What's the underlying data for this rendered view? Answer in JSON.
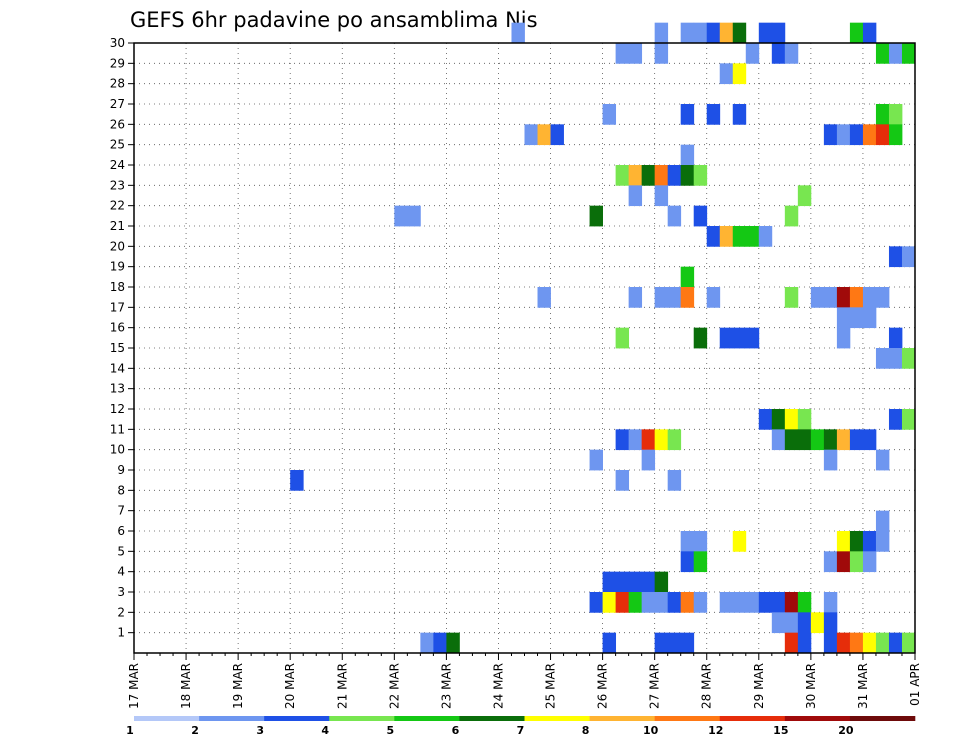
{
  "chart_data": {
    "type": "heatmap",
    "title": "GEFS 6hr padavine po ansamblima Nis",
    "y_ticks": [
      "1",
      "2",
      "3",
      "4",
      "5",
      "6",
      "7",
      "8",
      "9",
      "10",
      "11",
      "12",
      "13",
      "14",
      "15",
      "16",
      "17",
      "18",
      "19",
      "20",
      "21",
      "22",
      "23",
      "24",
      "25",
      "26",
      "27",
      "28",
      "29",
      "30"
    ],
    "y_range": [
      0,
      30
    ],
    "x_ticks": [
      "17 MAR",
      "18 MAR",
      "19 MAR",
      "20 MAR",
      "21 MAR",
      "22 MAR",
      "23 MAR",
      "24 MAR",
      "25 MAR",
      "26 MAR",
      "27 MAR",
      "28 MAR",
      "29 MAR",
      "30 MAR",
      "31 MAR",
      "01 APR"
    ],
    "x_range_steps": [
      0,
      60
    ],
    "x_step": "6hr",
    "grid": true,
    "legend": {
      "placement": "bottom",
      "labels": [
        "1",
        "2",
        "3",
        "4",
        "5",
        "6",
        "7",
        "8",
        "10",
        "12",
        "15",
        "20"
      ],
      "colors": [
        "#b4c8f8",
        "#6e96f0",
        "#1e50e6",
        "#78e650",
        "#14c814",
        "#0a6e0a",
        "#ffff00",
        "#ffb432",
        "#ff7814",
        "#e62d0a",
        "#a00a0a",
        "#6e0a0a"
      ]
    },
    "cells": [
      [
        30,
        29,
        1
      ],
      [
        30,
        40,
        1
      ],
      [
        30,
        42,
        1
      ],
      [
        30,
        43,
        1
      ],
      [
        30,
        44,
        2
      ],
      [
        30,
        45,
        7
      ],
      [
        30,
        46,
        5
      ],
      [
        30,
        48,
        2
      ],
      [
        30,
        49,
        2
      ],
      [
        30,
        55,
        4
      ],
      [
        30,
        56,
        2
      ],
      [
        29,
        37,
        1
      ],
      [
        29,
        38,
        1
      ],
      [
        29,
        40,
        1
      ],
      [
        29,
        47,
        1
      ],
      [
        29,
        49,
        2
      ],
      [
        29,
        50,
        1
      ],
      [
        29,
        57,
        4
      ],
      [
        29,
        58,
        1
      ],
      [
        29,
        59,
        4
      ],
      [
        28,
        45,
        1
      ],
      [
        28,
        46,
        6
      ],
      [
        26,
        36,
        1
      ],
      [
        26,
        42,
        2
      ],
      [
        26,
        44,
        2
      ],
      [
        26,
        46,
        2
      ],
      [
        26,
        57,
        4
      ],
      [
        26,
        58,
        3
      ],
      [
        25,
        30,
        1
      ],
      [
        25,
        31,
        7
      ],
      [
        25,
        32,
        2
      ],
      [
        25,
        53,
        2
      ],
      [
        25,
        54,
        1
      ],
      [
        25,
        55,
        2
      ],
      [
        25,
        56,
        8
      ],
      [
        25,
        57,
        9
      ],
      [
        25,
        58,
        4
      ],
      [
        24,
        42,
        1
      ],
      [
        23,
        37,
        3
      ],
      [
        23,
        38,
        7
      ],
      [
        23,
        39,
        5
      ],
      [
        23,
        40,
        8
      ],
      [
        23,
        41,
        2
      ],
      [
        23,
        42,
        5
      ],
      [
        23,
        43,
        3
      ],
      [
        22,
        38,
        1
      ],
      [
        22,
        40,
        1
      ],
      [
        22,
        51,
        3
      ],
      [
        21,
        20,
        1
      ],
      [
        21,
        21,
        1
      ],
      [
        21,
        35,
        5
      ],
      [
        21,
        41,
        1
      ],
      [
        21,
        43,
        2
      ],
      [
        21,
        50,
        3
      ],
      [
        20,
        44,
        2
      ],
      [
        20,
        45,
        7
      ],
      [
        20,
        46,
        4
      ],
      [
        20,
        47,
        4
      ],
      [
        20,
        48,
        1
      ],
      [
        19,
        58,
        2
      ],
      [
        19,
        59,
        1
      ],
      [
        18,
        42,
        4
      ],
      [
        17,
        31,
        1
      ],
      [
        17,
        38,
        1
      ],
      [
        17,
        40,
        1
      ],
      [
        17,
        41,
        1
      ],
      [
        17,
        42,
        8
      ],
      [
        17,
        44,
        1
      ],
      [
        17,
        50,
        3
      ],
      [
        17,
        52,
        1
      ],
      [
        17,
        53,
        1
      ],
      [
        17,
        54,
        10
      ],
      [
        17,
        55,
        8
      ],
      [
        17,
        56,
        1
      ],
      [
        17,
        57,
        1
      ],
      [
        16,
        54,
        1
      ],
      [
        16,
        55,
        1
      ],
      [
        16,
        56,
        1
      ],
      [
        15,
        37,
        3
      ],
      [
        15,
        43,
        5
      ],
      [
        15,
        45,
        2
      ],
      [
        15,
        46,
        2
      ],
      [
        15,
        47,
        2
      ],
      [
        15,
        54,
        1
      ],
      [
        15,
        58,
        2
      ],
      [
        14,
        57,
        1
      ],
      [
        14,
        58,
        1
      ],
      [
        14,
        59,
        3
      ],
      [
        11,
        48,
        2
      ],
      [
        11,
        49,
        5
      ],
      [
        11,
        50,
        6
      ],
      [
        11,
        51,
        3
      ],
      [
        11,
        58,
        2
      ],
      [
        11,
        59,
        3
      ],
      [
        10,
        37,
        2
      ],
      [
        10,
        38,
        1
      ],
      [
        10,
        39,
        9
      ],
      [
        10,
        40,
        6
      ],
      [
        10,
        41,
        3
      ],
      [
        10,
        49,
        1
      ],
      [
        10,
        50,
        5
      ],
      [
        10,
        51,
        5
      ],
      [
        10,
        52,
        4
      ],
      [
        10,
        53,
        5
      ],
      [
        10,
        54,
        7
      ],
      [
        10,
        55,
        2
      ],
      [
        10,
        56,
        2
      ],
      [
        9,
        35,
        1
      ],
      [
        9,
        39,
        1
      ],
      [
        9,
        53,
        1
      ],
      [
        9,
        57,
        1
      ],
      [
        8,
        12,
        2
      ],
      [
        8,
        37,
        1
      ],
      [
        8,
        41,
        1
      ],
      [
        6,
        57,
        1
      ],
      [
        5,
        42,
        1
      ],
      [
        5,
        43,
        1
      ],
      [
        5,
        46,
        6
      ],
      [
        5,
        54,
        6
      ],
      [
        5,
        55,
        5
      ],
      [
        5,
        56,
        2
      ],
      [
        5,
        57,
        1
      ],
      [
        4,
        42,
        2
      ],
      [
        4,
        43,
        4
      ],
      [
        4,
        53,
        1
      ],
      [
        4,
        54,
        10
      ],
      [
        4,
        55,
        3
      ],
      [
        4,
        56,
        1
      ],
      [
        3,
        36,
        2
      ],
      [
        3,
        37,
        2
      ],
      [
        3,
        38,
        2
      ],
      [
        3,
        39,
        2
      ],
      [
        3,
        40,
        5
      ],
      [
        2,
        35,
        2
      ],
      [
        2,
        36,
        6
      ],
      [
        2,
        37,
        9
      ],
      [
        2,
        38,
        4
      ],
      [
        2,
        39,
        1
      ],
      [
        2,
        40,
        1
      ],
      [
        2,
        41,
        2
      ],
      [
        2,
        42,
        8
      ],
      [
        2,
        43,
        1
      ],
      [
        2,
        45,
        1
      ],
      [
        2,
        46,
        1
      ],
      [
        2,
        47,
        1
      ],
      [
        2,
        48,
        2
      ],
      [
        2,
        49,
        2
      ],
      [
        2,
        50,
        10
      ],
      [
        2,
        51,
        4
      ],
      [
        2,
        53,
        1
      ],
      [
        1,
        49,
        1
      ],
      [
        1,
        50,
        1
      ],
      [
        1,
        51,
        2
      ],
      [
        1,
        52,
        6
      ],
      [
        1,
        53,
        2
      ],
      [
        0,
        22,
        1
      ],
      [
        0,
        23,
        2
      ],
      [
        0,
        24,
        5
      ],
      [
        0,
        36,
        2
      ],
      [
        0,
        40,
        2
      ],
      [
        0,
        41,
        2
      ],
      [
        0,
        42,
        2
      ],
      [
        0,
        50,
        9
      ],
      [
        0,
        51,
        2
      ],
      [
        0,
        53,
        2
      ],
      [
        0,
        54,
        9
      ],
      [
        0,
        55,
        8
      ],
      [
        0,
        56,
        6
      ],
      [
        0,
        57,
        3
      ],
      [
        0,
        58,
        2
      ],
      [
        0,
        59,
        3
      ]
    ]
  }
}
